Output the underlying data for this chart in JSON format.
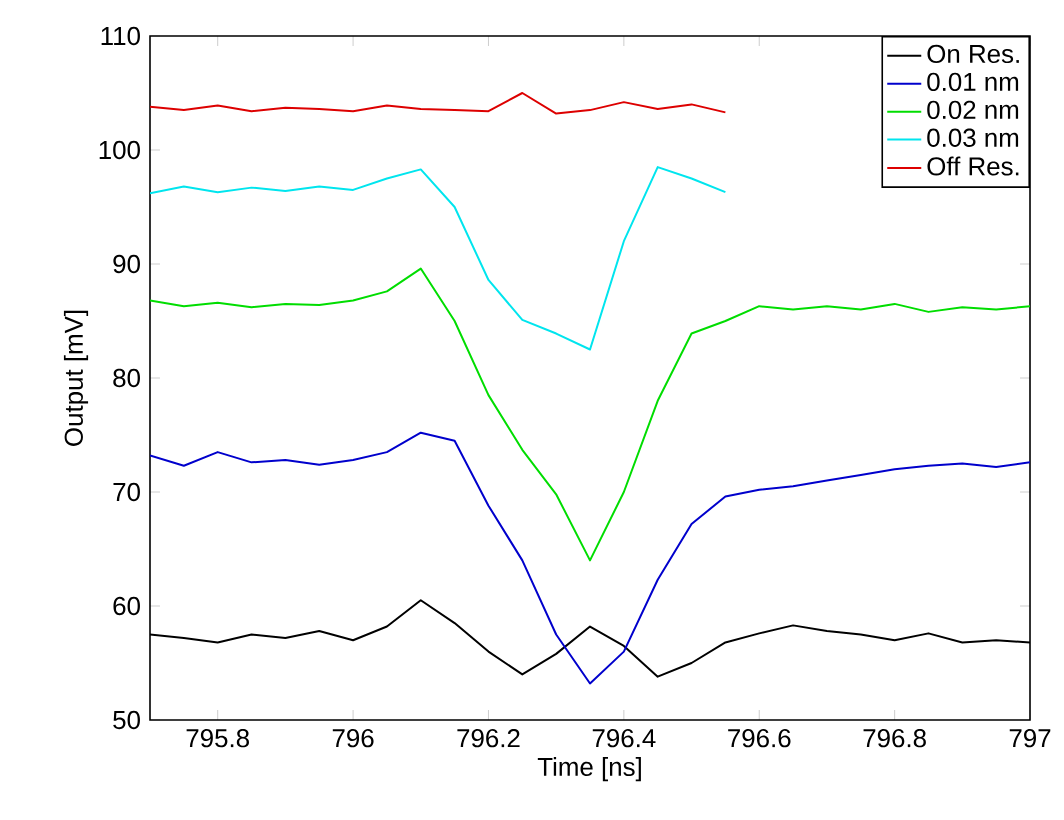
{
  "chart_data": {
    "type": "line",
    "xlabel": "Time [ns]",
    "ylabel": "Output [mV]",
    "x": [
      795.7,
      795.75,
      795.8,
      795.85,
      795.9,
      795.95,
      796.0,
      796.05,
      796.1,
      796.15,
      796.2,
      796.25,
      796.3,
      796.35,
      796.4,
      796.45,
      796.5,
      796.55,
      796.6,
      796.65,
      796.7,
      796.75,
      796.8,
      796.85,
      796.9,
      796.95,
      797.0
    ],
    "series": [
      {
        "name": "On Res.",
        "color": "#000000",
        "values": [
          57.5,
          57.2,
          56.8,
          57.5,
          57.2,
          57.8,
          57.0,
          58.2,
          60.5,
          58.5,
          56.0,
          54.0,
          55.8,
          58.2,
          56.5,
          53.8,
          55.0,
          56.8,
          57.6,
          58.3,
          57.8,
          57.5,
          57.0,
          57.6,
          56.8,
          57.0,
          56.8
        ]
      },
      {
        "name": "0.01 nm",
        "color": "#0000cc",
        "values": [
          73.2,
          72.3,
          73.5,
          72.6,
          72.8,
          72.4,
          72.8,
          73.5,
          75.2,
          74.5,
          68.8,
          64.0,
          57.5,
          53.2,
          56.0,
          62.3,
          67.2,
          69.6,
          70.2,
          70.5,
          71.0,
          71.5,
          72.0,
          72.3,
          72.5,
          72.2,
          72.6
        ]
      },
      {
        "name": "0.02 nm",
        "color": "#00dd00",
        "values": [
          86.8,
          86.3,
          86.6,
          86.2,
          86.5,
          86.4,
          86.8,
          87.6,
          89.6,
          85.0,
          78.5,
          73.7,
          69.8,
          64.0,
          70.0,
          78.0,
          83.9,
          85.0,
          86.3,
          86.0,
          86.3,
          86.0,
          86.5,
          85.8,
          86.2,
          86.0,
          86.3
        ]
      },
      {
        "name": "0.03 nm",
        "color": "#00e5ee",
        "values": [
          96.2,
          96.8,
          96.3,
          96.7,
          96.4,
          96.8,
          96.5,
          97.5,
          98.3,
          95.0,
          88.6,
          85.1,
          83.9,
          82.5,
          92.0,
          98.5,
          97.5,
          96.3,
          null,
          null,
          null,
          null,
          null,
          null,
          null,
          null,
          null
        ]
      },
      {
        "name": "Off Res.",
        "color": "#dd0000",
        "values": [
          103.8,
          103.5,
          103.9,
          103.4,
          103.7,
          103.6,
          103.4,
          103.9,
          103.6,
          103.5,
          103.4,
          105.0,
          103.2,
          103.5,
          104.2,
          103.6,
          104.0,
          103.3,
          null,
          null,
          null,
          null,
          null,
          null,
          null,
          null,
          null
        ]
      }
    ],
    "xlim": [
      795.7,
      797
    ],
    "xticks": [
      795.8,
      796,
      796.2,
      796.4,
      796.6,
      796.8,
      797
    ],
    "ylim": [
      50,
      110
    ],
    "yticks": [
      50,
      60,
      70,
      80,
      90,
      100,
      110
    ],
    "legend": "top right",
    "marker": "none",
    "line_style": "solid",
    "grid": false
  }
}
